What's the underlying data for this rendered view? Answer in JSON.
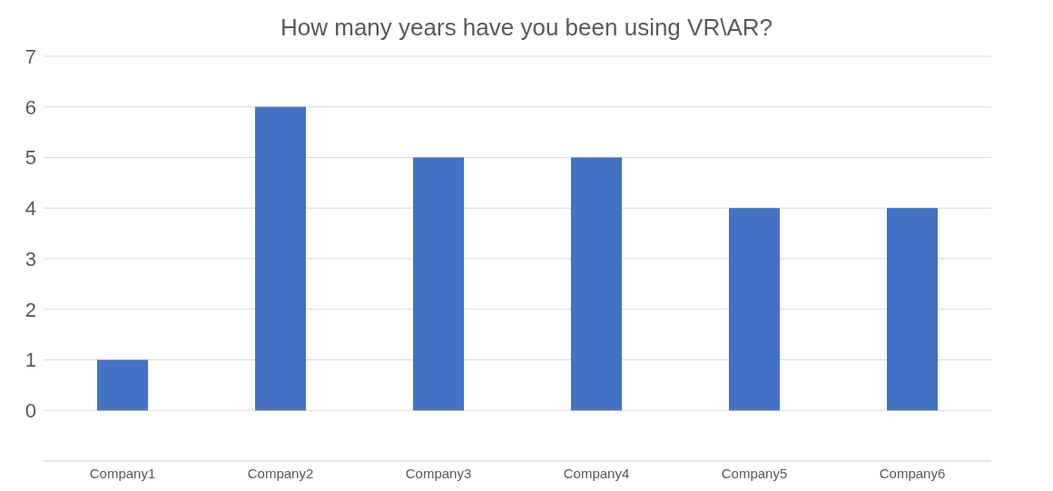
{
  "chart_data": {
    "type": "bar",
    "title": "How many years have you been using VR\\AR?",
    "categories": [
      "Company1",
      "Company2",
      "Company3",
      "Company4",
      "Company5",
      "Company6"
    ],
    "values": [
      1,
      6,
      5,
      5,
      4,
      4
    ],
    "color": "#4472c4",
    "ylim": [
      -1,
      7
    ],
    "yticks": [
      {
        "value": -1,
        "label": null
      },
      0,
      1,
      2,
      3,
      4,
      5,
      6,
      7
    ],
    "grid": "y"
  }
}
